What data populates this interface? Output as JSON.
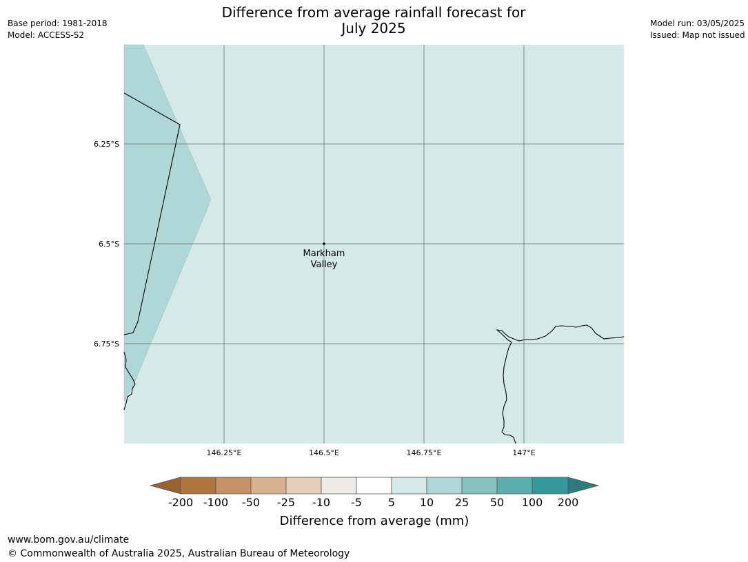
{
  "header": {
    "title_line1": "Difference from average rainfall forecast for",
    "title_line2": "July 2025",
    "base_period": "Base period: 1981-2018",
    "model": "Model: ACCESS-S2",
    "model_run": "Model run: 03/05/2025",
    "issued": "Issued: Map not issued"
  },
  "map": {
    "latitude_labels": [
      "6.25°S",
      "6.5°S",
      "6.75°S"
    ],
    "longitude_labels": [
      "146.25°E",
      "146.5°E",
      "146.75°E",
      "147°E"
    ],
    "place": {
      "name_line1": "Markham",
      "name_line2": "Valley",
      "lat": -6.5,
      "lon": 146.5
    },
    "fill_color": "#d5e9e8",
    "region_color": "#b0d7d7"
  },
  "colorbar": {
    "title": "Difference from average (mm)",
    "tick_labels": [
      "-200",
      "-100",
      "-50",
      "-25",
      "-10",
      "-5",
      "5",
      "10",
      "25",
      "50",
      "100",
      "200"
    ],
    "colors": [
      "#9b6330",
      "#b0763f",
      "#c49268",
      "#d5b391",
      "#e4cfbb",
      "#eeebe7",
      "#ffffff",
      "#d5e9e8",
      "#b0d7d7",
      "#84c1bf",
      "#5aaeab",
      "#34999a",
      "#2e7b7a"
    ]
  },
  "footer": {
    "url": "www.bom.gov.au/climate",
    "copyright": "© Commonwealth of Australia 2025, Australian Bureau of Meteorology"
  }
}
